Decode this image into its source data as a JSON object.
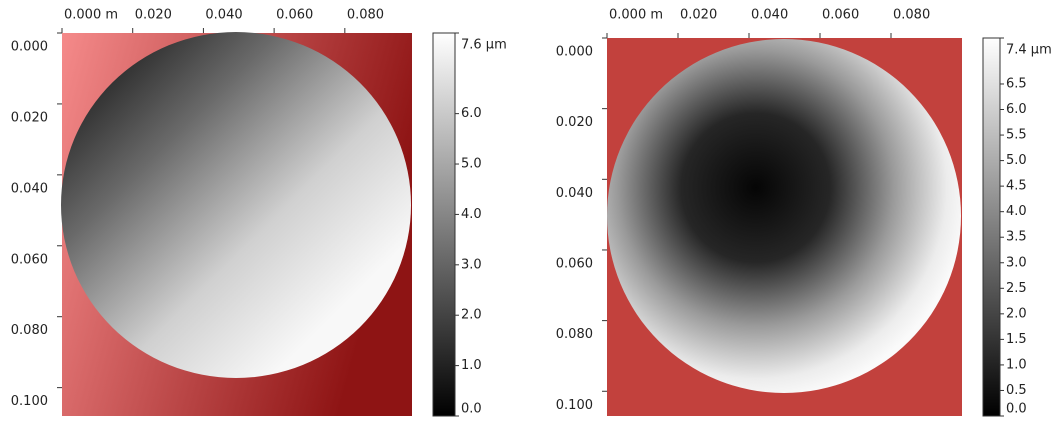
{
  "chart_data": [
    {
      "type": "heatmap",
      "xlim": [
        0,
        0.099
      ],
      "ylim": [
        0,
        0.108
      ],
      "clim": [
        0,
        7.6
      ],
      "xticks": [
        {
          "value": 0,
          "label": "0.000 m"
        },
        {
          "value": 0.02,
          "label": "0.020"
        },
        {
          "value": 0.04,
          "label": "0.040"
        },
        {
          "value": 0.06,
          "label": "0.060"
        },
        {
          "value": 0.08,
          "label": "0.080"
        }
      ],
      "yticks": [
        {
          "value": 0,
          "label": "0.000"
        },
        {
          "value": 0.02,
          "label": "0.020"
        },
        {
          "value": 0.04,
          "label": "0.040"
        },
        {
          "value": 0.06,
          "label": "0.060"
        },
        {
          "value": 0.08,
          "label": "0.080"
        },
        {
          "value": 0.1,
          "label": "0.100"
        }
      ],
      "cticks": [
        {
          "value": 0,
          "label": "0.0"
        },
        {
          "value": 1,
          "label": "1.0"
        },
        {
          "value": 2,
          "label": "2.0"
        },
        {
          "value": 3,
          "label": "3.0"
        },
        {
          "value": 4,
          "label": "4.0"
        },
        {
          "value": 5,
          "label": "5.0"
        },
        {
          "value": 6,
          "label": "6.0"
        },
        {
          "value": 7.6,
          "label": "7.6 µm"
        }
      ]
    },
    {
      "type": "heatmap",
      "xlim": [
        0,
        0.1
      ],
      "ylim": [
        0,
        0.107
      ],
      "clim": [
        0,
        7.4
      ],
      "xticks": [
        {
          "value": 0,
          "label": "0.000 m"
        },
        {
          "value": 0.02,
          "label": "0.020"
        },
        {
          "value": 0.04,
          "label": "0.040"
        },
        {
          "value": 0.06,
          "label": "0.060"
        },
        {
          "value": 0.08,
          "label": "0.080"
        }
      ],
      "yticks": [
        {
          "value": 0,
          "label": "0.000"
        },
        {
          "value": 0.02,
          "label": "0.020"
        },
        {
          "value": 0.04,
          "label": "0.040"
        },
        {
          "value": 0.06,
          "label": "0.060"
        },
        {
          "value": 0.08,
          "label": "0.080"
        },
        {
          "value": 0.1,
          "label": "0.100"
        }
      ],
      "cticks": [
        {
          "value": 0,
          "label": "0.0"
        },
        {
          "value": 0.5,
          "label": "0.5"
        },
        {
          "value": 1,
          "label": "1.0"
        },
        {
          "value": 1.5,
          "label": "1.5"
        },
        {
          "value": 2,
          "label": "2.0"
        },
        {
          "value": 2.5,
          "label": "2.5"
        },
        {
          "value": 3,
          "label": "3.0"
        },
        {
          "value": 3.5,
          "label": "3.5"
        },
        {
          "value": 4,
          "label": "4.0"
        },
        {
          "value": 4.5,
          "label": "4.5"
        },
        {
          "value": 5,
          "label": "5.0"
        },
        {
          "value": 5.5,
          "label": "5.5"
        },
        {
          "value": 6,
          "label": "6.0"
        },
        {
          "value": 6.5,
          "label": "6.5"
        },
        {
          "value": 7.4,
          "label": "7.4 µm"
        }
      ]
    }
  ]
}
